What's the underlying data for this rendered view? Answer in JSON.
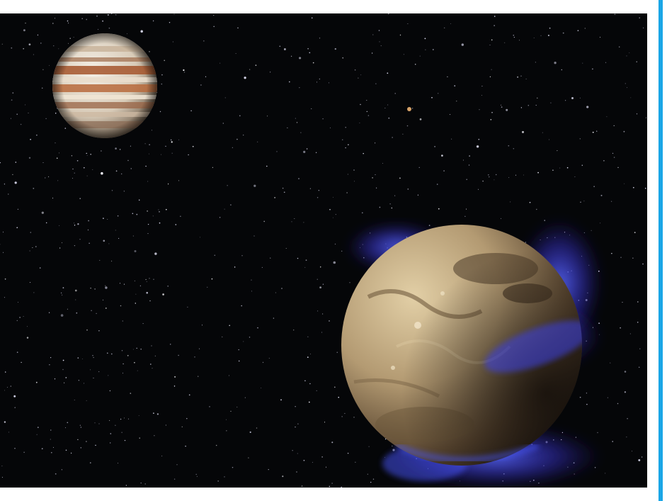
{
  "image": {
    "subject": "space-illustration",
    "objects": [
      "jupiter",
      "ganymede",
      "aurora",
      "star-field",
      "distant-moon"
    ]
  },
  "colors": {
    "background": "#ffffff",
    "space": "#050608",
    "accent_bar": "#1aa6e6",
    "aurora": "#3f4dff",
    "jupiter_band": "#a4552b",
    "ganymede_surface": "#b9a07a"
  }
}
